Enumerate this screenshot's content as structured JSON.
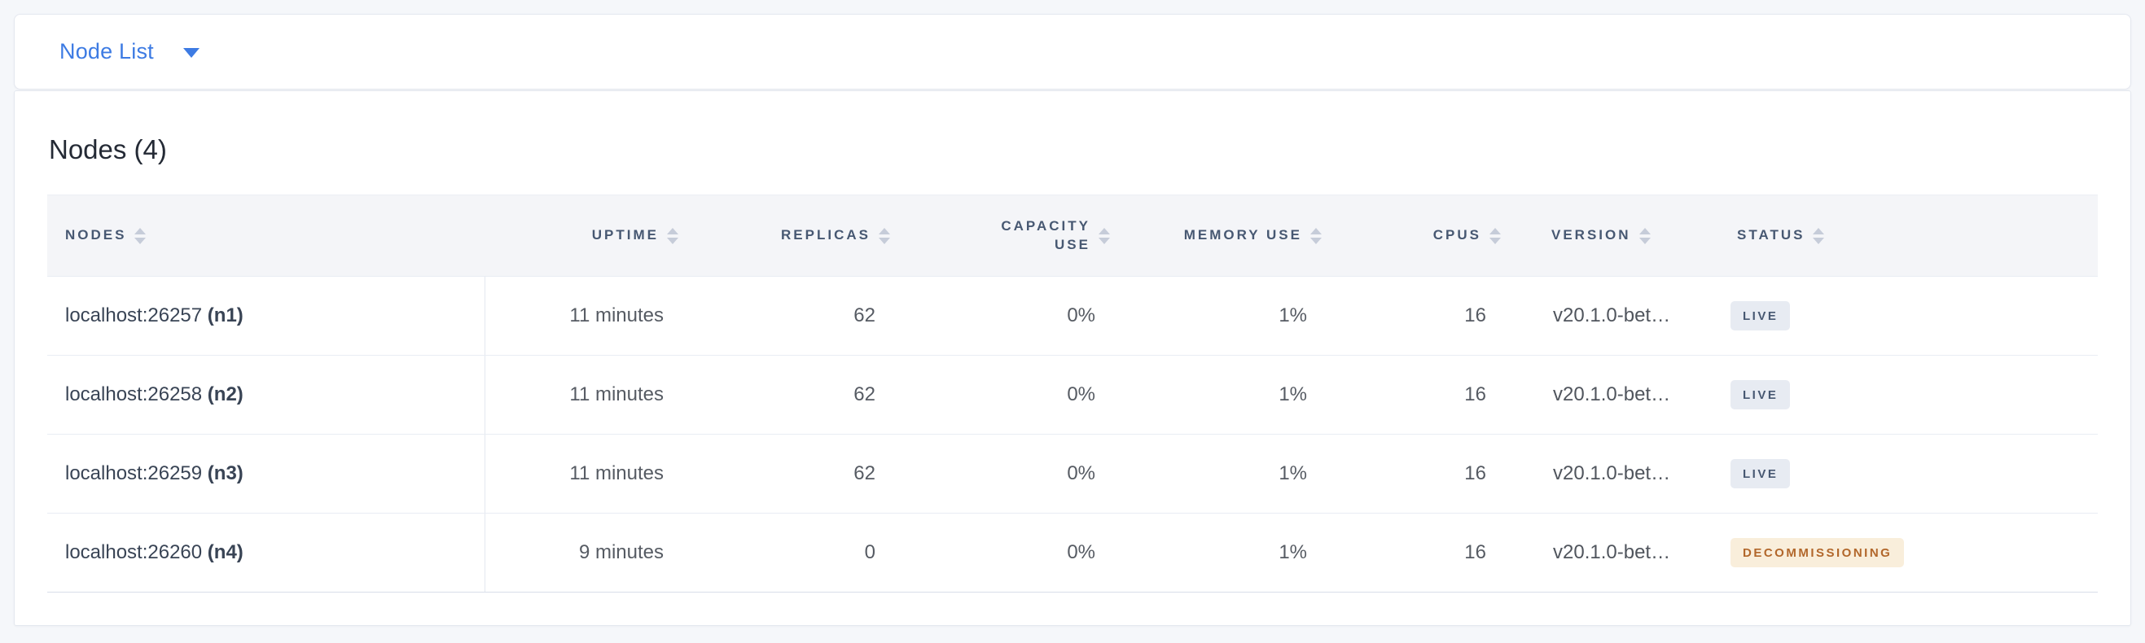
{
  "selector": {
    "label": "Node List",
    "caret_icon": "caret-down"
  },
  "panel": {
    "title": "Nodes (4)"
  },
  "table": {
    "columns": [
      {
        "key": "nodes",
        "label": "NODES",
        "align": "left"
      },
      {
        "key": "uptime",
        "label": "UPTIME",
        "align": "right"
      },
      {
        "key": "replicas",
        "label": "REPLICAS",
        "align": "right"
      },
      {
        "key": "capacity_use",
        "label": "CAPACITY USE",
        "align": "right"
      },
      {
        "key": "memory_use",
        "label": "MEMORY USE",
        "align": "right"
      },
      {
        "key": "cpus",
        "label": "CPUS",
        "align": "right"
      },
      {
        "key": "version",
        "label": "VERSION",
        "align": "left"
      },
      {
        "key": "status",
        "label": "STATUS",
        "align": "left"
      }
    ],
    "rows": [
      {
        "nodes": "localhost:26257",
        "node_id": "(n1)",
        "uptime": "11 minutes",
        "replicas": "62",
        "capacity_use": "0%",
        "memory_use": "1%",
        "cpus": "16",
        "version": "v20.1.0-bet…",
        "status": {
          "label": "LIVE",
          "type": "live"
        }
      },
      {
        "nodes": "localhost:26258",
        "node_id": "(n2)",
        "uptime": "11 minutes",
        "replicas": "62",
        "capacity_use": "0%",
        "memory_use": "1%",
        "cpus": "16",
        "version": "v20.1.0-bet…",
        "status": {
          "label": "LIVE",
          "type": "live"
        }
      },
      {
        "nodes": "localhost:26259",
        "node_id": "(n3)",
        "uptime": "11 minutes",
        "replicas": "62",
        "capacity_use": "0%",
        "memory_use": "1%",
        "cpus": "16",
        "version": "v20.1.0-bet…",
        "status": {
          "label": "LIVE",
          "type": "live"
        }
      },
      {
        "nodes": "localhost:26260",
        "node_id": "(n4)",
        "uptime": "9 minutes",
        "replicas": "0",
        "capacity_use": "0%",
        "memory_use": "1%",
        "cpus": "16",
        "version": "v20.1.0-bet…",
        "status": {
          "label": "DECOMMISSIONING",
          "type": "decommissioning"
        }
      }
    ]
  },
  "colors": {
    "page_background": "#f5f7fa",
    "accent_blue": "#3d7be3",
    "header_text": "#475872",
    "live_badge_bg": "#e7ebf2",
    "live_badge_text": "#475872",
    "decommissioning_badge_bg": "#f9eedb",
    "decommissioning_badge_text": "#b2672b"
  }
}
